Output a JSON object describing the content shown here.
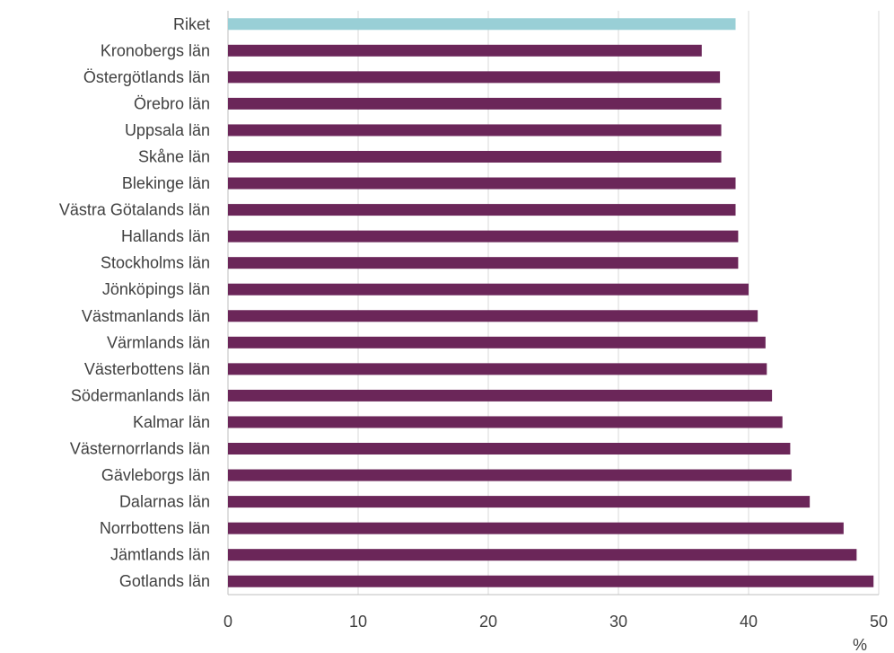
{
  "chart_data": {
    "type": "bar",
    "orientation": "horizontal",
    "categories": [
      "Riket",
      "Kronobergs län",
      "Östergötlands län",
      "Örebro län",
      "Uppsala län",
      "Skåne län",
      "Blekinge län",
      "Västra Götalands län",
      "Hallands län",
      "Stockholms län",
      "Jönköpings län",
      "Västmanlands län",
      "Värmlands län",
      "Västerbottens län",
      "Södermanlands län",
      "Kalmar län",
      "Västernorrlands län",
      "Gävleborgs län",
      "Dalarnas län",
      "Norrbottens län",
      "Jämtlands län",
      "Gotlands län"
    ],
    "values": [
      39.0,
      36.4,
      37.8,
      37.9,
      37.9,
      37.9,
      39.0,
      39.0,
      39.2,
      39.2,
      40.0,
      40.7,
      41.3,
      41.4,
      41.8,
      42.6,
      43.2,
      43.3,
      44.7,
      47.3,
      48.3,
      49.6
    ],
    "highlight_index": 0,
    "colors": {
      "highlight": "#99cfd6",
      "default": "#6b2659",
      "grid": "#d9d9d9",
      "axis": "#bfbfbf"
    },
    "xlim": [
      0,
      50
    ],
    "xticks": [
      "0",
      "10",
      "20",
      "30",
      "40",
      "50"
    ],
    "xunit": "%",
    "grid": "vertical",
    "legend": "none"
  }
}
